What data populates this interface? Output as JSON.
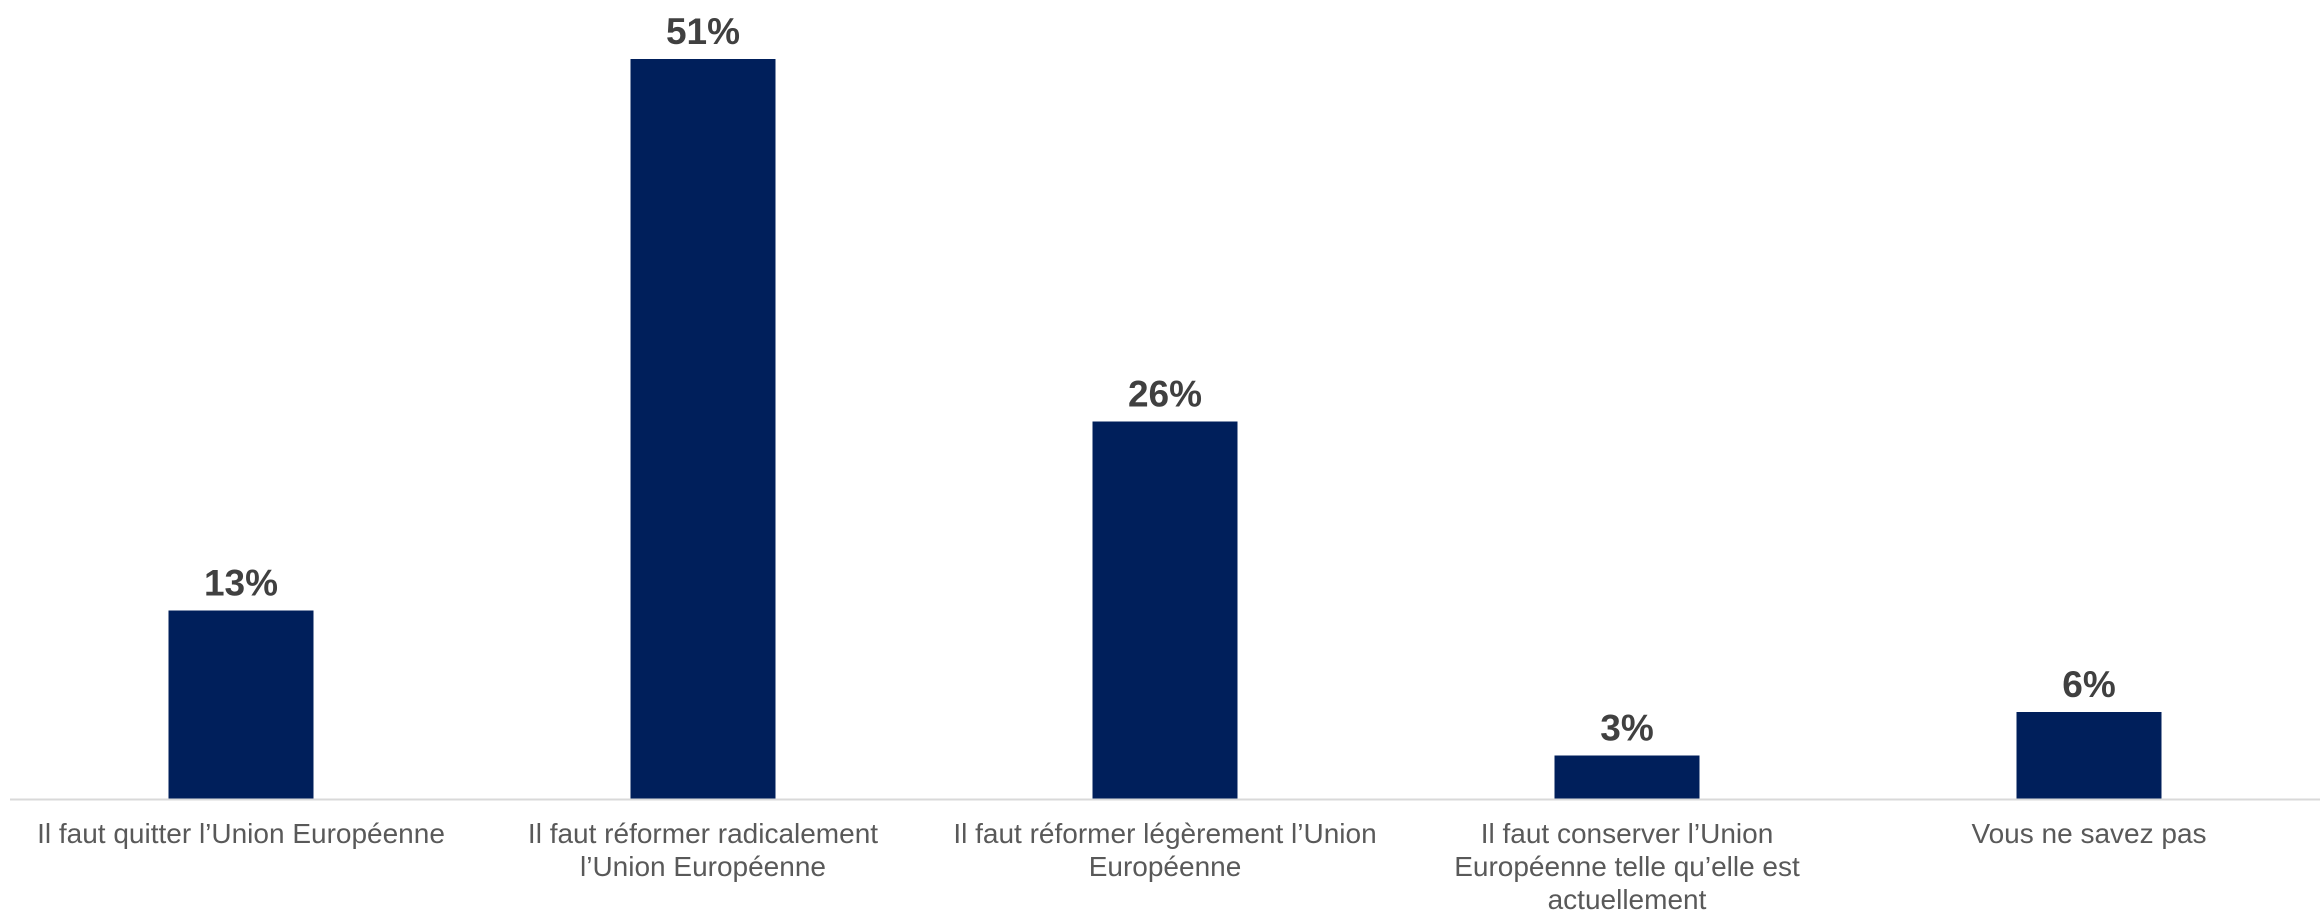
{
  "chart_data": {
    "type": "bar",
    "categories": [
      [
        "Il faut quitter l’Union Européenne"
      ],
      [
        "Il faut réformer radicalement",
        "l’Union Européenne"
      ],
      [
        "Il faut réformer légèrement l’Union",
        "Européenne"
      ],
      [
        "Il faut conserver l’Union",
        "Européenne telle qu’elle est",
        "actuellement"
      ],
      [
        "Vous ne savez pas"
      ]
    ],
    "values": [
      13,
      51,
      26,
      3,
      6
    ],
    "data_labels": [
      "13%",
      "51%",
      "26%",
      "3%",
      "6%"
    ],
    "value_unit": "%",
    "ylim": [
      0,
      51
    ],
    "grid": false,
    "legend": "none",
    "colors": {
      "bar": "#001f5b",
      "axis": "#d9d9d9",
      "value_label": "#404040",
      "category_label": "#595959"
    }
  }
}
